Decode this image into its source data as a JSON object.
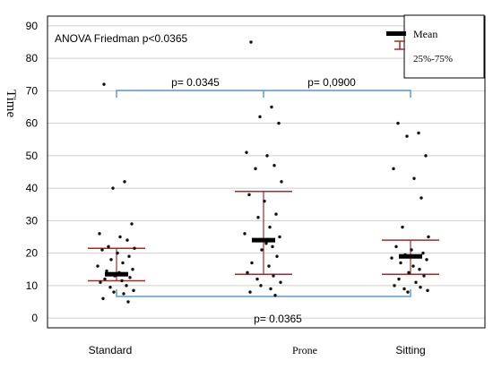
{
  "chart_data": {
    "type": "scatter",
    "title": "",
    "ylabel": "Time",
    "xlabel": "",
    "ylim": [
      -3,
      93
    ],
    "yticks": [
      0,
      10,
      20,
      30,
      40,
      50,
      60,
      70,
      80,
      90
    ],
    "grid": true,
    "categories": [
      "Standard",
      "Prone",
      "Sitting"
    ],
    "groups": [
      {
        "name": "Standard",
        "mean": 13.5,
        "q25": 11.5,
        "q75": 21.5,
        "points": [
          72.0,
          42.0,
          40.0,
          29.0,
          26.0,
          25.0,
          24.0,
          22.0,
          21.5,
          21.0,
          20.0,
          19.0,
          18.0,
          17.0,
          16.0,
          15.0,
          14.5,
          14.0,
          13.5,
          13.0,
          12.5,
          12.0,
          11.5,
          11.0,
          10.0,
          9.5,
          8.5,
          8.0,
          7.5,
          6.0,
          5.0
        ]
      },
      {
        "name": "Prone",
        "mean": 24.0,
        "q25": 13.5,
        "q75": 39.0,
        "points": [
          85.0,
          65.0,
          62.0,
          60.0,
          51.0,
          50.0,
          47.0,
          46.0,
          42.0,
          38.0,
          36.0,
          32.0,
          31.0,
          28.0,
          26.0,
          25.0,
          24.0,
          23.0,
          22.0,
          21.0,
          19.0,
          17.0,
          16.0,
          14.0,
          13.0,
          12.0,
          11.0,
          10.0,
          9.0,
          8.0,
          7.0
        ]
      },
      {
        "name": "Sitting",
        "mean": 19.0,
        "q25": 13.5,
        "q75": 24.0,
        "points": [
          60.0,
          57.0,
          56.0,
          50.0,
          46.0,
          43.0,
          37.0,
          28.0,
          25.0,
          22.0,
          21.0,
          20.0,
          19.5,
          19.0,
          18.5,
          18.0,
          17.0,
          16.0,
          15.0,
          14.0,
          13.0,
          12.0,
          11.0,
          10.0,
          9.5,
          9.0,
          8.5,
          8.0
        ]
      }
    ],
    "annotations": {
      "anova": "ANOVA Friedman p<0.0365",
      "bracket_standard_prone": "p= 0.0345",
      "bracket_prone_sitting": "p= 0,0900",
      "bracket_standard_sitting": "p= 0.0365"
    },
    "legend": {
      "position": "top-right",
      "mean_label": "Mean",
      "range_label": "25%-75%"
    },
    "colors": {
      "error_bar": "#a52a2a",
      "bracket": "#5b9bd5",
      "points": "#111111",
      "mean": "#000000",
      "grid": "#cfcfcf"
    }
  }
}
